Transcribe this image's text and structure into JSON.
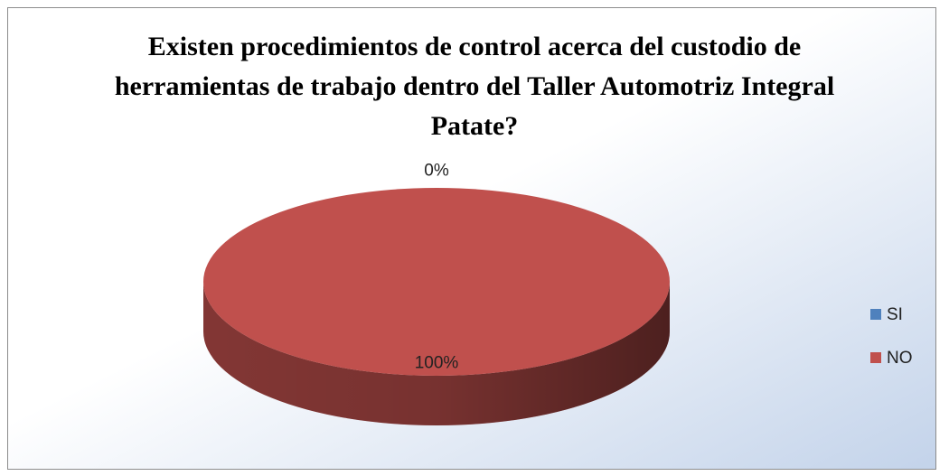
{
  "chart_data": {
    "type": "pie",
    "title": "Existen procedimientos de control acerca del custodio de herramientas de trabajo dentro del Taller Automotriz Integral Patate?",
    "categories": [
      "SI",
      "NO"
    ],
    "values": [
      0,
      100
    ],
    "value_labels": [
      "0%",
      "100%"
    ],
    "colors": [
      "#4f81bd",
      "#c0504d"
    ],
    "legend": "right"
  }
}
